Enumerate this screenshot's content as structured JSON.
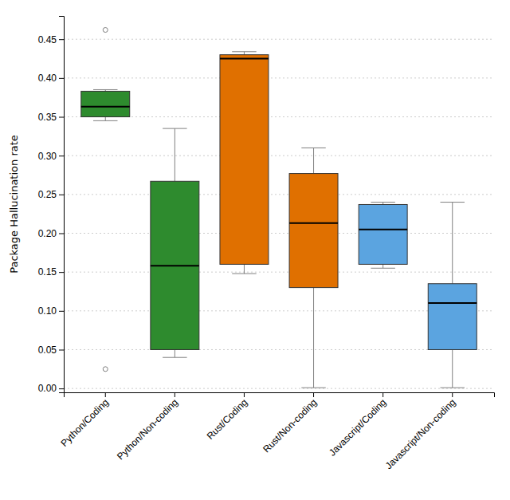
{
  "chart_data": {
    "type": "box",
    "ylabel": "Package Hallucination rate",
    "categories": [
      "Python/Coding",
      "Python/Non-coding",
      "Rust/Coding",
      "Rust/Non-coding",
      "Javascript/Coding",
      "Javascript/Non-coding"
    ],
    "boxes": [
      {
        "q1": 0.35,
        "median": 0.363,
        "q3": 0.383,
        "whislo": 0.345,
        "whishi": 0.385,
        "fliers": [
          0.462,
          0.025
        ]
      },
      {
        "q1": 0.05,
        "median": 0.158,
        "q3": 0.267,
        "whislo": 0.04,
        "whishi": 0.335,
        "fliers": []
      },
      {
        "q1": 0.16,
        "median": 0.425,
        "q3": 0.43,
        "whislo": 0.148,
        "whishi": 0.434,
        "fliers": []
      },
      {
        "q1": 0.13,
        "median": 0.213,
        "q3": 0.277,
        "whislo": 0.001,
        "whishi": 0.31,
        "fliers": []
      },
      {
        "q1": 0.16,
        "median": 0.205,
        "q3": 0.237,
        "whislo": 0.155,
        "whishi": 0.24,
        "fliers": []
      },
      {
        "q1": 0.05,
        "median": 0.11,
        "q3": 0.135,
        "whislo": 0.001,
        "whishi": 0.24,
        "fliers": []
      }
    ],
    "colors": [
      "#2e8b2e",
      "#2e8b2e",
      "#e07000",
      "#e07000",
      "#5ba4e0",
      "#5ba4e0"
    ],
    "ylim": [
      -0.005,
      0.48
    ],
    "yticks": [
      {
        "value": 0,
        "label": "0.00"
      },
      0.05,
      {
        "value": 0.1,
        "label": "0.10"
      },
      0.15,
      {
        "value": 0.2,
        "label": "0.20"
      },
      0.25,
      {
        "value": 0.3,
        "label": "0.30"
      },
      0.35,
      {
        "value": 0.4,
        "label": "0.40"
      },
      0.45
    ],
    "grid": true
  }
}
